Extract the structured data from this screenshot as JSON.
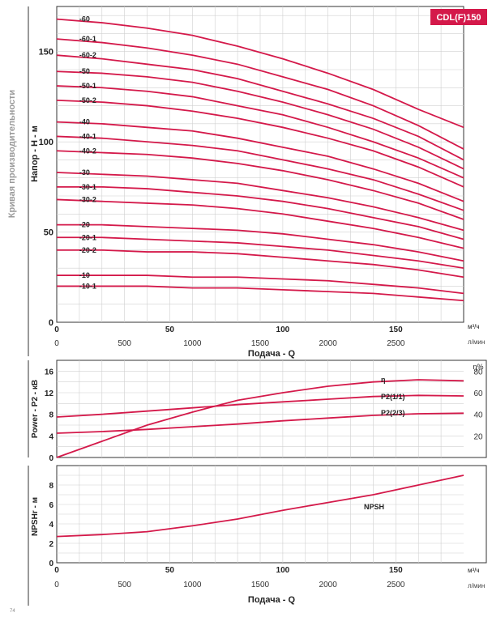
{
  "page": {
    "side_title": "Кривая производительности",
    "badge": "CDL(F)150",
    "page_number": "74"
  },
  "chart_data": [
    {
      "id": "head",
      "type": "line",
      "title": "",
      "ylabel": "Напор - H - м",
      "xlabel": "Подача - Q",
      "unit_m3h": "м³/ч",
      "unit_lmin": "л/мин",
      "xlim": [
        0,
        180
      ],
      "ylim": [
        0,
        175
      ],
      "y_ticks": [
        0,
        50,
        100,
        150
      ],
      "x_ticks_m3h": [
        0,
        50,
        100,
        150
      ],
      "x_ticks_lmin": [
        0,
        500,
        1000,
        1500,
        2000,
        2500
      ],
      "series_x": [
        0,
        20,
        40,
        60,
        80,
        100,
        120,
        140,
        160,
        180
      ],
      "series": [
        {
          "name": "-60",
          "values": [
            168,
            166,
            163,
            159,
            153,
            146,
            138,
            129,
            118,
            108
          ]
        },
        {
          "name": "-60-1",
          "values": [
            157,
            155,
            152,
            148,
            143,
            136,
            129,
            120,
            109,
            96
          ]
        },
        {
          "name": "-60-2",
          "values": [
            148,
            146,
            143,
            140,
            135,
            128,
            121,
            113,
            103,
            90
          ]
        },
        {
          "name": "-50",
          "values": [
            139,
            138,
            136,
            133,
            128,
            122,
            115,
            107,
            97,
            85
          ]
        },
        {
          "name": "-50-1",
          "values": [
            131,
            130,
            128,
            125,
            120,
            115,
            108,
            100,
            91,
            80
          ]
        },
        {
          "name": "-50-2",
          "values": [
            123,
            122,
            120,
            117,
            113,
            108,
            102,
            95,
            86,
            75
          ]
        },
        {
          "name": "-40",
          "values": [
            111,
            110,
            108,
            106,
            102,
            97,
            92,
            85,
            77,
            67
          ]
        },
        {
          "name": "-40-1",
          "values": [
            103,
            102,
            100,
            98,
            95,
            90,
            85,
            79,
            71,
            62
          ]
        },
        {
          "name": "-40-2",
          "values": [
            95,
            94,
            93,
            91,
            88,
            84,
            79,
            73,
            66,
            57
          ]
        },
        {
          "name": "-30",
          "values": [
            83,
            82,
            81,
            79,
            77,
            73,
            69,
            64,
            58,
            51
          ]
        },
        {
          "name": "-30-1",
          "values": [
            75,
            75,
            74,
            72,
            70,
            67,
            63,
            58,
            53,
            46
          ]
        },
        {
          "name": "-30-2",
          "values": [
            68,
            67,
            66,
            65,
            63,
            60,
            56,
            52,
            47,
            41
          ]
        },
        {
          "name": "-20",
          "values": [
            54,
            54,
            53,
            52,
            51,
            49,
            46,
            43,
            39,
            34
          ]
        },
        {
          "name": "-20-1",
          "values": [
            47,
            47,
            46,
            45,
            44,
            42,
            40,
            37,
            34,
            30
          ]
        },
        {
          "name": "-20-2",
          "values": [
            40,
            40,
            39,
            39,
            38,
            36,
            34,
            32,
            29,
            25
          ]
        },
        {
          "name": "-10",
          "values": [
            26,
            26,
            26,
            25,
            25,
            24,
            23,
            21,
            19,
            16
          ]
        },
        {
          "name": "-10-1",
          "values": [
            20,
            20,
            20,
            19,
            19,
            18,
            17,
            16,
            14,
            12
          ]
        }
      ]
    },
    {
      "id": "power",
      "type": "line",
      "ylabel": "Power - P2 - кВ",
      "y2label": "η%",
      "xlim": [
        0,
        180
      ],
      "ylim": [
        0,
        18
      ],
      "y_ticks": [
        0,
        4,
        8,
        12,
        16
      ],
      "y2_ticks": [
        20,
        40,
        60,
        80
      ],
      "y2lim": [
        0,
        90
      ],
      "series_x": [
        0,
        20,
        40,
        60,
        80,
        100,
        120,
        140,
        160,
        180
      ],
      "series": [
        {
          "name": "η",
          "axis": "right",
          "values": [
            0,
            15,
            30,
            42,
            53,
            60,
            66,
            70,
            72,
            71
          ]
        },
        {
          "name": "P2(1/1)",
          "axis": "left",
          "values": [
            7.5,
            8.0,
            8.6,
            9.2,
            9.8,
            10.3,
            10.8,
            11.3,
            11.5,
            11.4
          ]
        },
        {
          "name": "P2(2/3)",
          "axis": "left",
          "values": [
            4.5,
            4.8,
            5.2,
            5.7,
            6.2,
            6.8,
            7.3,
            7.8,
            8.1,
            8.2
          ]
        }
      ]
    },
    {
      "id": "npsh",
      "type": "line",
      "ylabel": "NPSHr - м",
      "xlabel": "Подача - Q",
      "unit_m3h": "м³/ч",
      "unit_lmin": "л/мин",
      "xlim": [
        0,
        180
      ],
      "ylim": [
        0,
        10
      ],
      "y_ticks": [
        0,
        2,
        4,
        6,
        8
      ],
      "x_ticks_m3h": [
        0,
        50,
        100,
        150
      ],
      "x_ticks_lmin": [
        0,
        500,
        1000,
        1500,
        2000,
        2500
      ],
      "series_x": [
        0,
        20,
        40,
        60,
        80,
        100,
        120,
        140,
        160,
        180
      ],
      "series": [
        {
          "name": "NPSH",
          "values": [
            2.7,
            2.9,
            3.2,
            3.8,
            4.5,
            5.4,
            6.2,
            7.0,
            8.0,
            9.0
          ]
        }
      ]
    }
  ],
  "colors": {
    "curve": "#d4194a",
    "grid": "#d0d0d0",
    "frame": "#333333",
    "badge_bg": "#d4194a",
    "badge_text": "#ffffff",
    "side_text": "#9a9a9a"
  }
}
